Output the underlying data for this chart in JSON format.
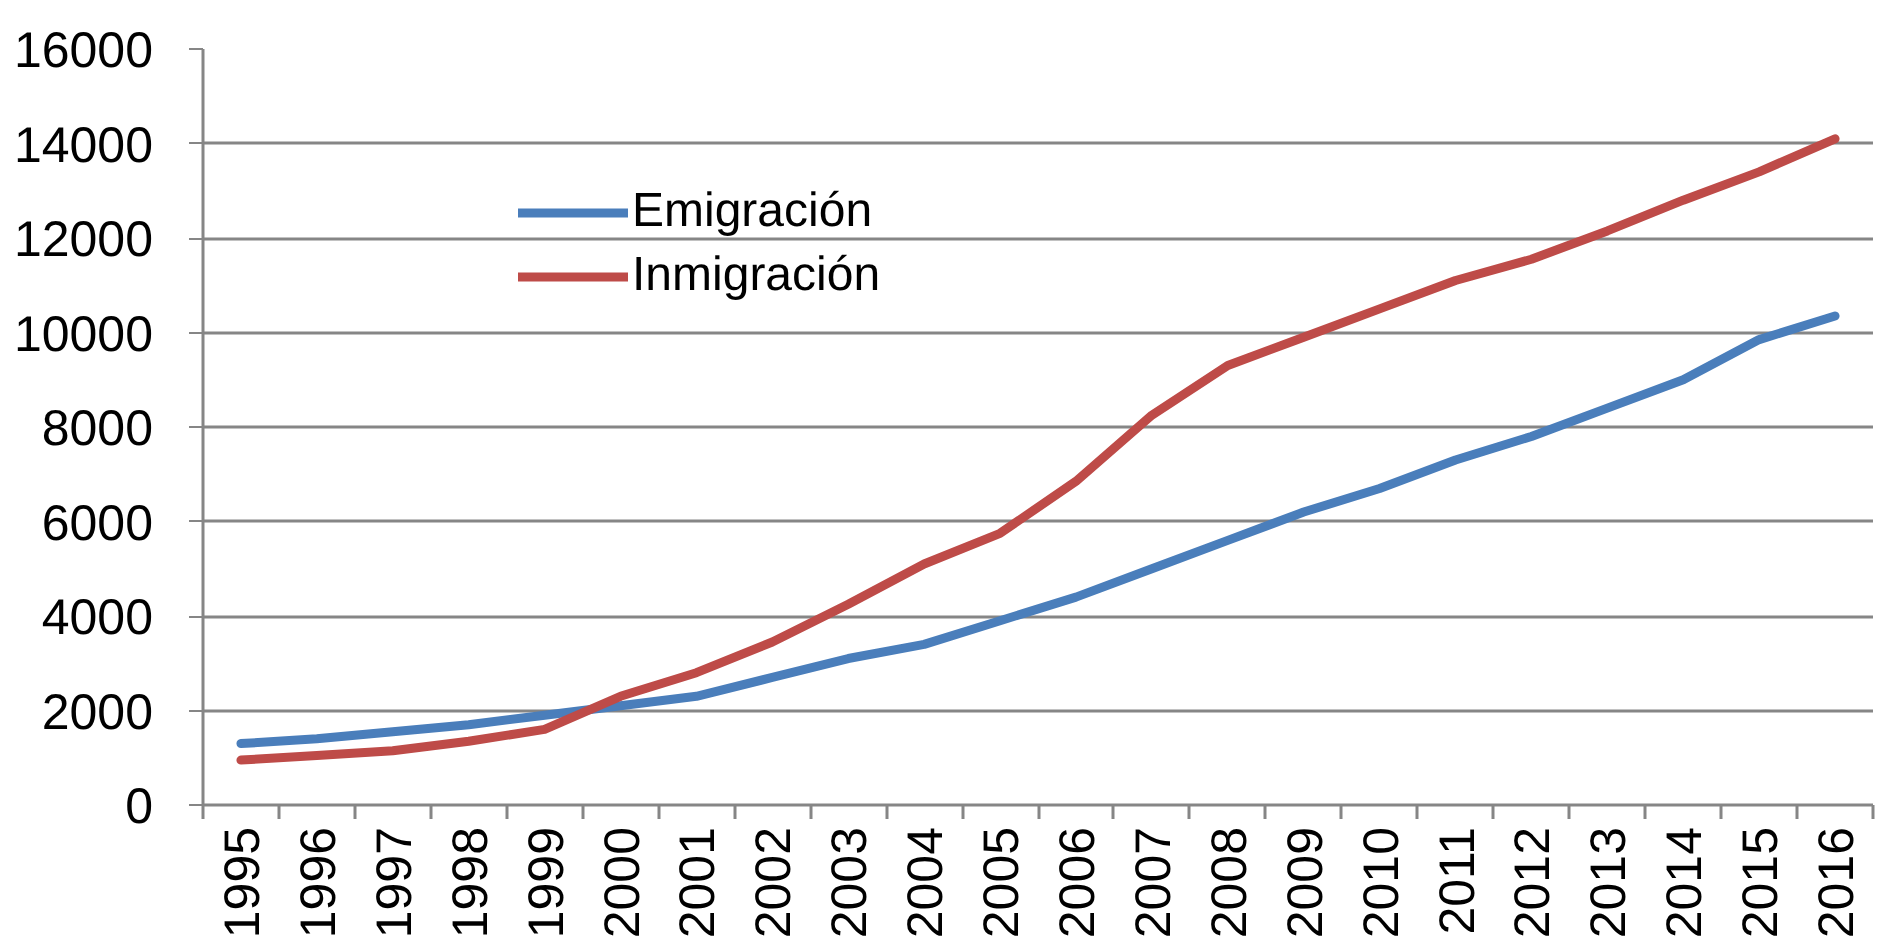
{
  "chart_data": {
    "type": "line",
    "categories": [
      "1995",
      "1996",
      "1997",
      "1998",
      "1999",
      "2000",
      "2001",
      "2002",
      "2003",
      "2004",
      "2005",
      "2006",
      "2007",
      "2008",
      "2009",
      "2010",
      "2011",
      "2012",
      "2013",
      "2014",
      "2015",
      "2016"
    ],
    "series": [
      {
        "name": "Emigración",
        "color": "#4a7ebb",
        "values": [
          1300,
          1400,
          1550,
          1700,
          1900,
          2100,
          2300,
          2700,
          3100,
          3400,
          3900,
          4400,
          5000,
          5600,
          6200,
          6700,
          7300,
          7800,
          8400,
          9000,
          9850,
          10350
        ]
      },
      {
        "name": "Inmigración",
        "color": "#be4b48",
        "values": [
          950,
          1050,
          1150,
          1350,
          1600,
          2300,
          2800,
          3450,
          4250,
          5100,
          5750,
          6850,
          8250,
          9300,
          9900,
          10500,
          11100,
          11550,
          12150,
          12800,
          13400,
          14100
        ]
      }
    ],
    "ylim": [
      0,
      16000
    ],
    "yticks": [
      0,
      2000,
      4000,
      6000,
      8000,
      10000,
      12000,
      14000,
      16000
    ],
    "grid": "y",
    "legend": "top left",
    "line_style": "solid"
  }
}
